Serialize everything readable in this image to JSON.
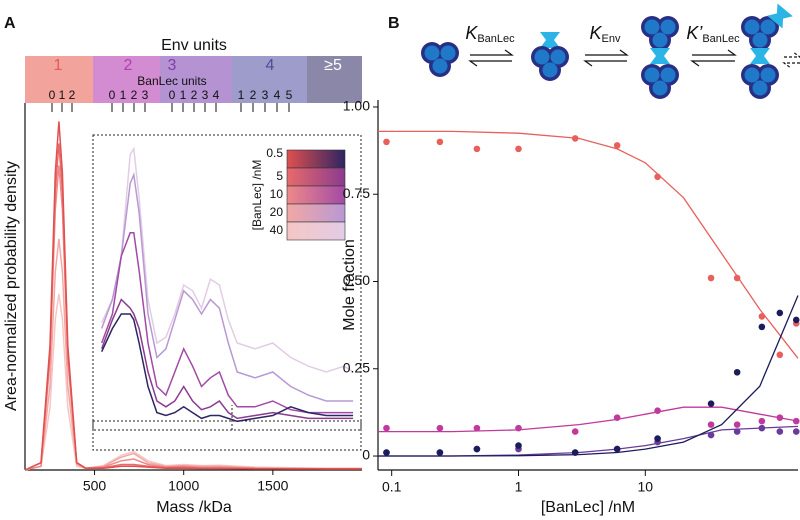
{
  "chart_data": [
    {
      "panel": "A",
      "type": "line",
      "band_title": "Env units",
      "band_labels": [
        "1",
        "2",
        "3",
        "4",
        "≥5"
      ],
      "band_colors": [
        "#f2a39c",
        "#d38bd2",
        "#b592d2",
        "#9e9ccb",
        "#8b87a9"
      ],
      "sub_title": "BanLec units",
      "sub_labels": [
        [
          "0",
          "1",
          "2"
        ],
        [
          "0",
          "1",
          "2",
          "3"
        ],
        [
          "0",
          "1",
          "2",
          "3",
          "4"
        ],
        [
          "1",
          "2",
          "3",
          "4",
          "5"
        ]
      ],
      "xlabel": "Mass /kDa",
      "ylabel": "Area-normalized probability density",
      "xlim": [
        110,
        2000
      ],
      "ylim": [
        0,
        1
      ],
      "xticks": [
        500,
        1000,
        1500
      ],
      "legend_title": "[BanLec] /nM",
      "x": [
        110,
        200,
        250,
        280,
        300,
        320,
        350,
        400,
        450,
        550,
        650,
        720,
        800,
        900,
        1000,
        1100,
        1200,
        1400,
        1600,
        1800,
        2000
      ],
      "series": [
        {
          "name": "0.5",
          "color": "#e0504f",
          "values": [
            0,
            0.02,
            0.34,
            0.81,
            0.95,
            0.81,
            0.34,
            0.02,
            0.005,
            0.005,
            0.01,
            0.01,
            0.008,
            0.005,
            0.005,
            0.004,
            0.004,
            0.003,
            0.003,
            0.003,
            0.003
          ]
        },
        {
          "name": "5",
          "color": "#e86a6a",
          "values": [
            0,
            0.02,
            0.32,
            0.76,
            0.89,
            0.76,
            0.32,
            0.02,
            0.005,
            0.006,
            0.015,
            0.015,
            0.01,
            0.006,
            0.007,
            0.005,
            0.005,
            0.004,
            0.003,
            0.003,
            0.003
          ]
        },
        {
          "name": "10",
          "color": "#ee8a88",
          "values": [
            0,
            0.01,
            0.3,
            0.71,
            0.83,
            0.71,
            0.3,
            0.02,
            0.005,
            0.008,
            0.025,
            0.03,
            0.015,
            0.008,
            0.01,
            0.007,
            0.008,
            0.005,
            0.004,
            0.003,
            0.003
          ]
        },
        {
          "name": "20",
          "color": "#f2a8a5",
          "values": [
            0,
            0.01,
            0.23,
            0.54,
            0.63,
            0.54,
            0.23,
            0.015,
            0.005,
            0.01,
            0.035,
            0.045,
            0.02,
            0.01,
            0.012,
            0.01,
            0.01,
            0.006,
            0.005,
            0.004,
            0.004
          ]
        },
        {
          "name": "40",
          "color": "#f6c6c4",
          "values": [
            0,
            0.01,
            0.17,
            0.41,
            0.48,
            0.41,
            0.17,
            0.01,
            0.005,
            0.012,
            0.04,
            0.05,
            0.025,
            0.012,
            0.015,
            0.012,
            0.013,
            0.008,
            0.006,
            0.005,
            0.005
          ]
        }
      ]
    },
    {
      "panel": "A",
      "type": "line",
      "ylim": [
        0,
        1
      ],
      "x": [
        540,
        600,
        650,
        700,
        720,
        750,
        800,
        850,
        900,
        950,
        1000,
        1050,
        1100,
        1150,
        1200,
        1250,
        1300,
        1400,
        1500,
        1600,
        1700,
        1800,
        1900,
        1950
      ],
      "series": [
        {
          "color": "#2e2563",
          "values": [
            0.27,
            0.35,
            0.4,
            0.4,
            0.38,
            0.3,
            0.15,
            0.06,
            0.05,
            0.06,
            0.08,
            0.06,
            0.04,
            0.05,
            0.05,
            0.04,
            0.03,
            0.04,
            0.05,
            0.08,
            0.06,
            0.05,
            0.05,
            0.05
          ]
        },
        {
          "color": "#8a3b8f",
          "values": [
            0.28,
            0.38,
            0.45,
            0.42,
            0.4,
            0.35,
            0.2,
            0.1,
            0.08,
            0.1,
            0.15,
            0.1,
            0.07,
            0.08,
            0.1,
            0.06,
            0.04,
            0.05,
            0.06,
            0.05,
            0.04,
            0.04,
            0.04,
            0.04
          ]
        },
        {
          "color": "#a24aa6",
          "values": [
            0.3,
            0.4,
            0.6,
            0.68,
            0.68,
            0.55,
            0.3,
            0.15,
            0.12,
            0.2,
            0.28,
            0.22,
            0.15,
            0.18,
            0.2,
            0.12,
            0.08,
            0.08,
            0.1,
            0.07,
            0.06,
            0.06,
            0.06,
            0.06
          ]
        },
        {
          "color": "#b998d4",
          "values": [
            0.35,
            0.45,
            0.6,
            0.85,
            0.88,
            0.75,
            0.4,
            0.25,
            0.28,
            0.38,
            0.48,
            0.45,
            0.4,
            0.45,
            0.42,
            0.3,
            0.2,
            0.18,
            0.2,
            0.15,
            0.12,
            0.1,
            0.1,
            0.1
          ]
        },
        {
          "color": "#e2cce6",
          "values": [
            0.37,
            0.45,
            0.6,
            0.95,
            0.97,
            0.8,
            0.45,
            0.3,
            0.32,
            0.4,
            0.5,
            0.48,
            0.42,
            0.52,
            0.5,
            0.38,
            0.3,
            0.28,
            0.3,
            0.25,
            0.22,
            0.2,
            0.22,
            0.2
          ]
        }
      ]
    },
    {
      "panel": "B",
      "type": "scatter",
      "xlabel": "[BanLec] /nM",
      "ylabel": "Mole fraction",
      "xscale": "log",
      "xlim": [
        0.078,
        160
      ],
      "ylim": [
        -0.04,
        1.02
      ],
      "xticks": [
        0.1,
        1,
        10
      ],
      "yticks": [
        0,
        0.25,
        {
          "value": 0.5,
          "label": "0.50"
        },
        0.75,
        {
          "value": 1,
          "label": "1.00"
        }
      ],
      "x": [
        0.091,
        0.24,
        0.47,
        1,
        2.8,
        6,
        12.5,
        33,
        53,
        83,
        115,
        155
      ],
      "fit_x": [
        0.078,
        0.3,
        1,
        3,
        6,
        10,
        20,
        40,
        80,
        160
      ],
      "series": [
        {
          "color": "#e8605c",
          "values": [
            0.9,
            0.9,
            0.88,
            0.88,
            0.91,
            0.89,
            0.8,
            0.51,
            0.51,
            0.4,
            0.29,
            0.38
          ],
          "fit": [
            0.93,
            0.93,
            0.925,
            0.91,
            0.88,
            0.84,
            0.74,
            0.58,
            0.42,
            0.28
          ]
        },
        {
          "color": "#c0399d",
          "values": [
            0.08,
            0.08,
            0.08,
            0.08,
            0.07,
            0.11,
            0.13,
            0.09,
            0.09,
            0.1,
            0.11,
            0.1
          ],
          "fit": [
            0.07,
            0.07,
            0.075,
            0.09,
            0.105,
            0.12,
            0.14,
            0.14,
            0.12,
            0.1
          ]
        },
        {
          "color": "#6a3a9c",
          "values": [
            0.01,
            0.01,
            0.02,
            0.02,
            0.01,
            0.02,
            0.04,
            0.06,
            0.07,
            0.08,
            0.07,
            0.07
          ],
          "fit": [
            0,
            0,
            0.003,
            0.01,
            0.02,
            0.03,
            0.05,
            0.075,
            0.08,
            0.085
          ]
        },
        {
          "color": "#1c1c5c",
          "values": [
            0.01,
            0.01,
            0.02,
            0.03,
            0.01,
            0.02,
            0.05,
            0.15,
            0.24,
            0.37,
            0.41,
            0.39
          ],
          "fit": [
            0,
            0,
            0.001,
            0.004,
            0.01,
            0.02,
            0.04,
            0.09,
            0.2,
            0.46
          ]
        }
      ]
    }
  ],
  "scheme": {
    "constants": [
      {
        "symbol": "K",
        "sub": "BanLec"
      },
      {
        "symbol": "K",
        "sub": "Env"
      },
      {
        "symbol": "K’",
        "sub": "BanLec"
      }
    ]
  }
}
